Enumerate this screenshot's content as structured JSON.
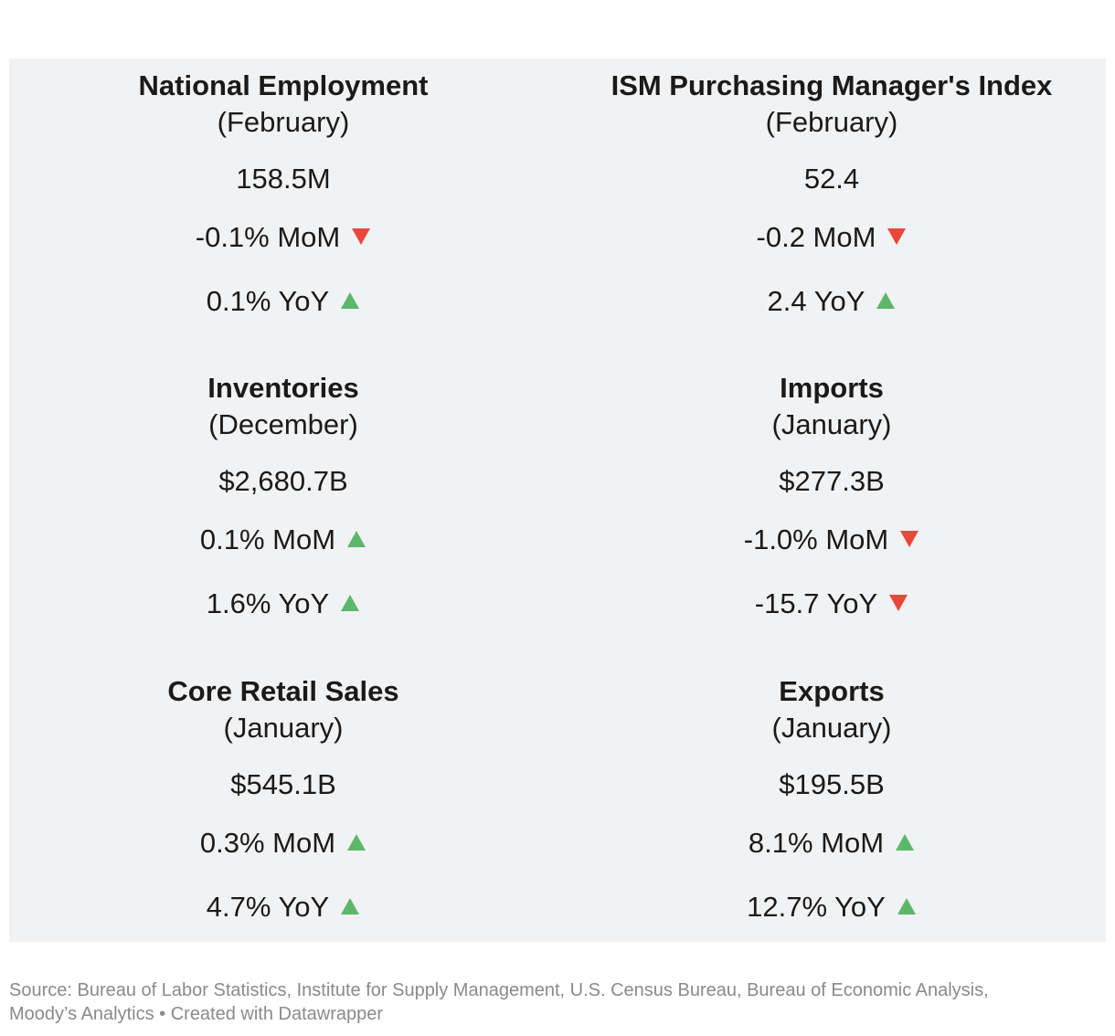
{
  "chart_data": {
    "type": "table",
    "colors": {
      "up": "#5bb86a",
      "down": "#e8483a",
      "background": "#f1f2f3",
      "text": "#1a1a1a",
      "footer": "#8a8a8a"
    },
    "cells": [
      {
        "title": "National Employment",
        "period": "(February)",
        "value": "158.5M",
        "mom": {
          "text": "-0.1% MoM",
          "direction": "down"
        },
        "yoy": {
          "text": "0.1% YoY",
          "direction": "up"
        }
      },
      {
        "title": "ISM Purchasing Manager's Index",
        "period": "(February)",
        "value": "52.4",
        "mom": {
          "text": "-0.2 MoM",
          "direction": "down"
        },
        "yoy": {
          "text": "2.4 YoY",
          "direction": "up"
        }
      },
      {
        "title": "Inventories",
        "period": "(December)",
        "value": "$2,680.7B",
        "mom": {
          "text": "0.1% MoM",
          "direction": "up"
        },
        "yoy": {
          "text": "1.6% YoY",
          "direction": "up"
        }
      },
      {
        "title": "Imports",
        "period": "(January)",
        "value": "$277.3B",
        "mom": {
          "text": "-1.0% MoM",
          "direction": "down"
        },
        "yoy": {
          "text": "-15.7 YoY",
          "direction": "down"
        }
      },
      {
        "title": "Core Retail Sales",
        "period": "(January)",
        "value": "$545.1B",
        "mom": {
          "text": "0.3% MoM",
          "direction": "up"
        },
        "yoy": {
          "text": "4.7% YoY",
          "direction": "up"
        }
      },
      {
        "title": "Exports",
        "period": "(January)",
        "value": "$195.5B",
        "mom": {
          "text": "8.1% MoM",
          "direction": "up"
        },
        "yoy": {
          "text": "12.7% YoY",
          "direction": "up"
        }
      }
    ]
  },
  "footer": {
    "source_line": "Source: Bureau of Labor Statistics, Institute for Supply Management, U.S. Census Bureau, Bureau of Economic Analysis,",
    "credit_line": "Moody’s Analytics • Created with Datawrapper"
  }
}
